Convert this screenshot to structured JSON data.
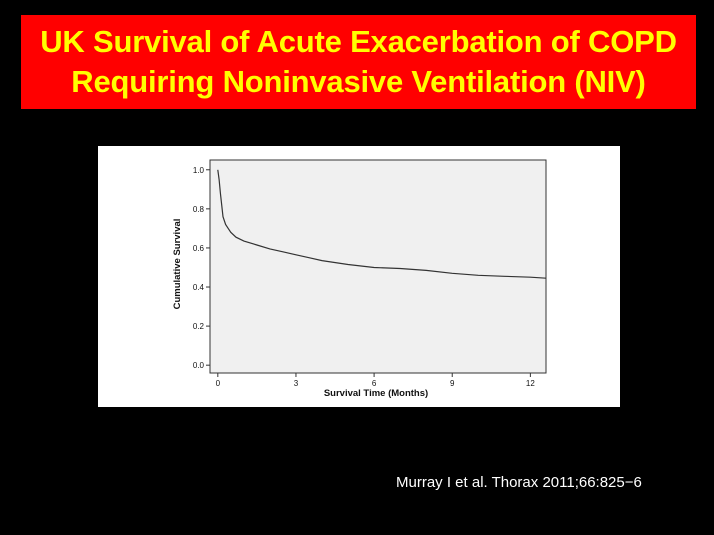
{
  "slide": {
    "title_line1": "UK Survival of Acute Exacerbation of COPD",
    "title_line2": "Requiring Noninvasive Ventilation (NIV)",
    "citation": "Murray I et al. Thorax 2011;66:825−6"
  },
  "colors": {
    "background": "#000000",
    "title_bg": "#ff0000",
    "title_text": "#ffff00",
    "plot_bg": "#f0f0f0",
    "curve": "#333333"
  },
  "chart_data": {
    "type": "line",
    "xlabel": "Survival Time (Months)",
    "ylabel": "Cumulative Survival",
    "xlim": [
      -0.3,
      12.6
    ],
    "ylim": [
      -0.04,
      1.05
    ],
    "xticks": [
      0,
      3,
      6,
      9,
      12
    ],
    "xtick_labels": [
      "0",
      "3",
      "6",
      "9",
      "12"
    ],
    "yticks": [
      0.0,
      0.2,
      0.4,
      0.6,
      0.8,
      1.0
    ],
    "ytick_labels": [
      "0.0",
      "0.2",
      "0.4",
      "0.6",
      "0.8",
      "1.0"
    ],
    "grid": false,
    "series": [
      {
        "x": [
          0,
          0.05,
          0.1,
          0.15,
          0.2,
          0.3,
          0.4,
          0.5,
          0.7,
          1.0,
          1.5,
          2.0,
          2.5,
          3.0,
          3.5,
          4.0,
          5.0,
          6.0,
          7.0,
          8.0,
          9.0,
          10.0,
          11.0,
          12.0,
          12.6
        ],
        "y": [
          1.0,
          0.95,
          0.88,
          0.82,
          0.76,
          0.72,
          0.7,
          0.68,
          0.655,
          0.635,
          0.615,
          0.595,
          0.58,
          0.565,
          0.55,
          0.535,
          0.515,
          0.5,
          0.495,
          0.485,
          0.47,
          0.46,
          0.455,
          0.45,
          0.445
        ]
      }
    ]
  }
}
